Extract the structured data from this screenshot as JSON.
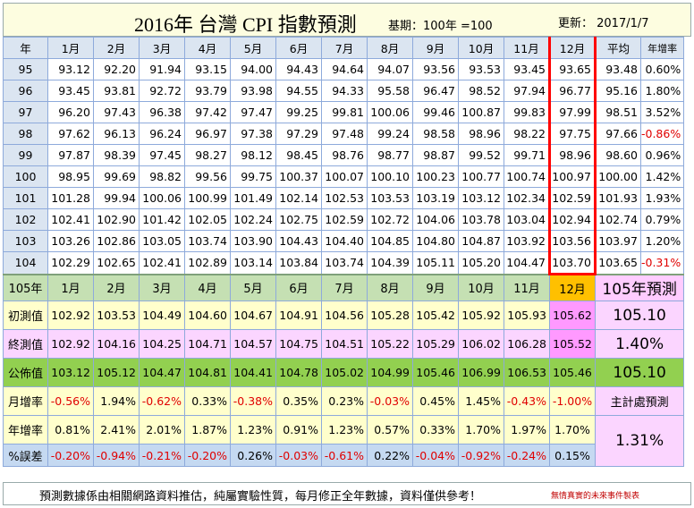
{
  "title": {
    "main": "2016年 台灣 CPI 指數預測",
    "base": "基期：100年 =100",
    "update": "更新：  2017/1/7"
  },
  "header": {
    "year": "年",
    "months": [
      "1月",
      "2月",
      "3月",
      "4月",
      "5月",
      "6月",
      "7月",
      "8月",
      "9月",
      "10月",
      "11月",
      "12月"
    ],
    "avg": "平均",
    "yoy": "年增率"
  },
  "history": [
    {
      "year": "95",
      "values": [
        "93.12",
        "92.20",
        "91.94",
        "93.15",
        "94.00",
        "94.43",
        "94.64",
        "94.07",
        "93.56",
        "93.53",
        "93.45",
        "93.65"
      ],
      "avg": "93.48",
      "yoy": "0.60%",
      "yoy_neg": false
    },
    {
      "year": "96",
      "values": [
        "93.45",
        "93.81",
        "92.72",
        "93.79",
        "93.98",
        "94.55",
        "94.33",
        "95.58",
        "96.47",
        "98.52",
        "97.94",
        "96.77"
      ],
      "avg": "95.16",
      "yoy": "1.80%",
      "yoy_neg": false
    },
    {
      "year": "97",
      "values": [
        "96.20",
        "97.43",
        "96.38",
        "97.42",
        "97.47",
        "99.25",
        "99.81",
        "100.06",
        "99.46",
        "100.87",
        "99.83",
        "97.99"
      ],
      "avg": "98.51",
      "yoy": "3.52%",
      "yoy_neg": false
    },
    {
      "year": "98",
      "values": [
        "97.62",
        "96.13",
        "96.24",
        "96.97",
        "97.38",
        "97.29",
        "97.48",
        "99.24",
        "98.58",
        "98.96",
        "98.22",
        "97.75"
      ],
      "avg": "97.66",
      "yoy": "-0.86%",
      "yoy_neg": true
    },
    {
      "year": "99",
      "values": [
        "97.87",
        "98.39",
        "97.45",
        "98.27",
        "98.12",
        "98.45",
        "98.76",
        "98.77",
        "98.87",
        "99.52",
        "99.71",
        "98.96"
      ],
      "avg": "98.60",
      "yoy": "0.96%",
      "yoy_neg": false
    },
    {
      "year": "100",
      "values": [
        "98.95",
        "99.69",
        "98.82",
        "99.56",
        "99.75",
        "100.37",
        "100.07",
        "100.10",
        "100.23",
        "100.77",
        "100.74",
        "100.97"
      ],
      "avg": "100.00",
      "yoy": "1.42%",
      "yoy_neg": false
    },
    {
      "year": "101",
      "values": [
        "101.28",
        "99.94",
        "100.06",
        "100.99",
        "101.49",
        "102.14",
        "102.53",
        "103.53",
        "103.19",
        "103.12",
        "102.34",
        "102.59"
      ],
      "avg": "101.93",
      "yoy": "1.93%",
      "yoy_neg": false
    },
    {
      "year": "102",
      "values": [
        "102.41",
        "102.90",
        "101.42",
        "102.05",
        "102.24",
        "102.75",
        "102.59",
        "102.72",
        "104.06",
        "103.78",
        "103.04",
        "102.94"
      ],
      "avg": "102.74",
      "yoy": "0.79%",
      "yoy_neg": false
    },
    {
      "year": "103",
      "values": [
        "103.26",
        "102.86",
        "103.05",
        "103.74",
        "103.90",
        "104.43",
        "104.40",
        "104.85",
        "104.80",
        "104.87",
        "103.92",
        "103.56"
      ],
      "avg": "103.97",
      "yoy": "1.20%",
      "yoy_neg": false
    },
    {
      "year": "104",
      "values": [
        "102.29",
        "102.65",
        "102.41",
        "102.89",
        "103.14",
        "103.84",
        "103.74",
        "104.39",
        "105.11",
        "105.20",
        "104.47",
        "103.70"
      ],
      "avg": "103.65",
      "yoy": "-0.31%",
      "yoy_neg": true
    }
  ],
  "forecast": {
    "year_label": "105年",
    "pred_header": "105年預測",
    "initial": {
      "label": "初測值",
      "values": [
        "102.92",
        "103.53",
        "104.49",
        "104.60",
        "104.67",
        "104.91",
        "104.56",
        "105.28",
        "105.42",
        "105.92",
        "105.93",
        "105.62"
      ],
      "summary": "105.10"
    },
    "final": {
      "label": "終測值",
      "values": [
        "102.92",
        "104.16",
        "104.25",
        "104.71",
        "104.57",
        "104.75",
        "104.51",
        "105.22",
        "105.29",
        "106.02",
        "106.28",
        "105.52"
      ],
      "summary": "1.40%"
    },
    "published": {
      "label": "公佈值",
      "values": [
        "103.12",
        "105.12",
        "104.47",
        "104.81",
        "104.41",
        "104.78",
        "105.02",
        "104.99",
        "105.46",
        "106.99",
        "106.53",
        "105.46"
      ],
      "summary": "105.10"
    },
    "monthly": {
      "label": "月增率",
      "values": [
        "-0.56%",
        "1.94%",
        "-0.62%",
        "0.33%",
        "-0.38%",
        "0.35%",
        "0.23%",
        "-0.03%",
        "0.45%",
        "1.45%",
        "-0.43%",
        "-1.00%"
      ],
      "neg": [
        true,
        false,
        true,
        false,
        true,
        false,
        false,
        true,
        false,
        false,
        true,
        true
      ],
      "summary": "主計處預測"
    },
    "annual": {
      "label": "年增率",
      "values": [
        "0.81%",
        "2.41%",
        "2.01%",
        "1.87%",
        "1.23%",
        "0.91%",
        "1.23%",
        "0.57%",
        "0.33%",
        "1.70%",
        "1.97%",
        "1.70%"
      ],
      "summary": "1.31%"
    },
    "error": {
      "label": "%誤差",
      "values": [
        "-0.20%",
        "-0.94%",
        "-0.21%",
        "-0.20%",
        "0.26%",
        "-0.03%",
        "-0.61%",
        "0.22%",
        "-0.04%",
        "-0.92%",
        "-0.24%",
        "0.15%"
      ],
      "neg": [
        true,
        true,
        true,
        true,
        false,
        true,
        true,
        false,
        true,
        true,
        true,
        false
      ]
    }
  },
  "footer": {
    "text": "預測數據係由相關網路資料推估，純屬實驗性質，每月修正全年數據，資料僅供參考！",
    "note": "無情真實的未來事件製表"
  },
  "colors": {
    "header_bg": "#dbe5f1",
    "forecast_header_bg": "#c5e0b3",
    "december_highlight": "#ffc000",
    "prediction_bg": "#fbd5ff",
    "published_bg": "#92d050",
    "yellow_bg": "#ffffcc",
    "error_bg": "#c5d9f1",
    "negative_text": "#e00000",
    "december_border": "#ff0000"
  }
}
